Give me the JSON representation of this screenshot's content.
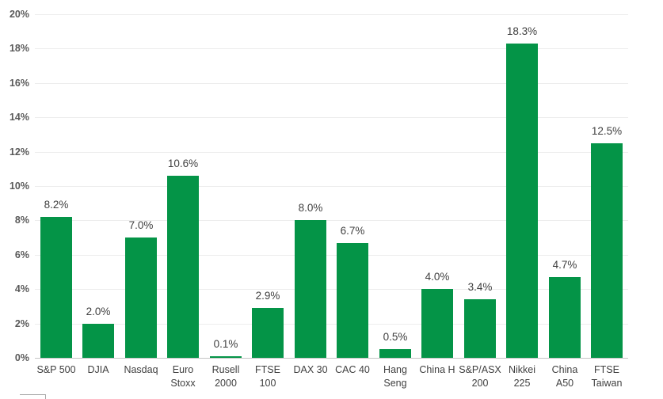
{
  "chart_data": {
    "type": "bar",
    "title": "",
    "xlabel": "",
    "ylabel": "",
    "categories": [
      "S&P 500",
      "DJIA",
      "Nasdaq",
      "Euro Stoxx",
      "Rusell 2000",
      "FTSE 100",
      "DAX 30",
      "CAC 40",
      "Hang Seng",
      "China H",
      "S&P/ASX 200",
      "Nikkei 225",
      "China A50",
      "FTSE Taiwan"
    ],
    "category_lines": [
      [
        "S&P 500"
      ],
      [
        "DJIA"
      ],
      [
        "Nasdaq"
      ],
      [
        "Euro",
        "Stoxx"
      ],
      [
        "Rusell",
        "2000"
      ],
      [
        "FTSE",
        "100"
      ],
      [
        "DAX 30"
      ],
      [
        "CAC 40"
      ],
      [
        "Hang",
        "Seng"
      ],
      [
        "China H"
      ],
      [
        "S&P/ASX",
        "200"
      ],
      [
        "Nikkei",
        "225"
      ],
      [
        "China",
        "A50"
      ],
      [
        "FTSE",
        "Taiwan"
      ]
    ],
    "values": [
      8.2,
      2.0,
      7.0,
      10.6,
      0.1,
      2.9,
      8.0,
      6.7,
      0.5,
      4.0,
      3.4,
      18.3,
      4.7,
      12.5
    ],
    "data_labels": [
      "8.2%",
      "2.0%",
      "7.0%",
      "10.6%",
      "0.1%",
      "2.9%",
      "8.0%",
      "6.7%",
      "0.5%",
      "4.0%",
      "3.4%",
      "18.3%",
      "4.7%",
      "12.5%"
    ],
    "y_ticks": [
      {
        "value": 0,
        "label": "0%"
      },
      {
        "value": 2,
        "label": "2%"
      },
      {
        "value": 4,
        "label": "4%"
      },
      {
        "value": 6,
        "label": "6%"
      },
      {
        "value": 8,
        "label": "8%"
      },
      {
        "value": 10,
        "label": "10%"
      },
      {
        "value": 12,
        "label": "12%"
      },
      {
        "value": 14,
        "label": "14%"
      },
      {
        "value": 16,
        "label": "16%"
      },
      {
        "value": 18,
        "label": "18%"
      },
      {
        "value": 20,
        "label": "20%"
      }
    ],
    "ylim": [
      0,
      20
    ],
    "grid": true,
    "legend": false,
    "colors": {
      "bar": "#049447",
      "gridline": "#ededed",
      "axis_line": "#c6c6c6",
      "tick_label": "#595959",
      "data_label": "#404040",
      "category_label": "#404040",
      "background": "#ffffff",
      "artifact_border": "#a8a8a8"
    }
  },
  "artifacts": {
    "bottom_left_partial_box_visible": true
  }
}
